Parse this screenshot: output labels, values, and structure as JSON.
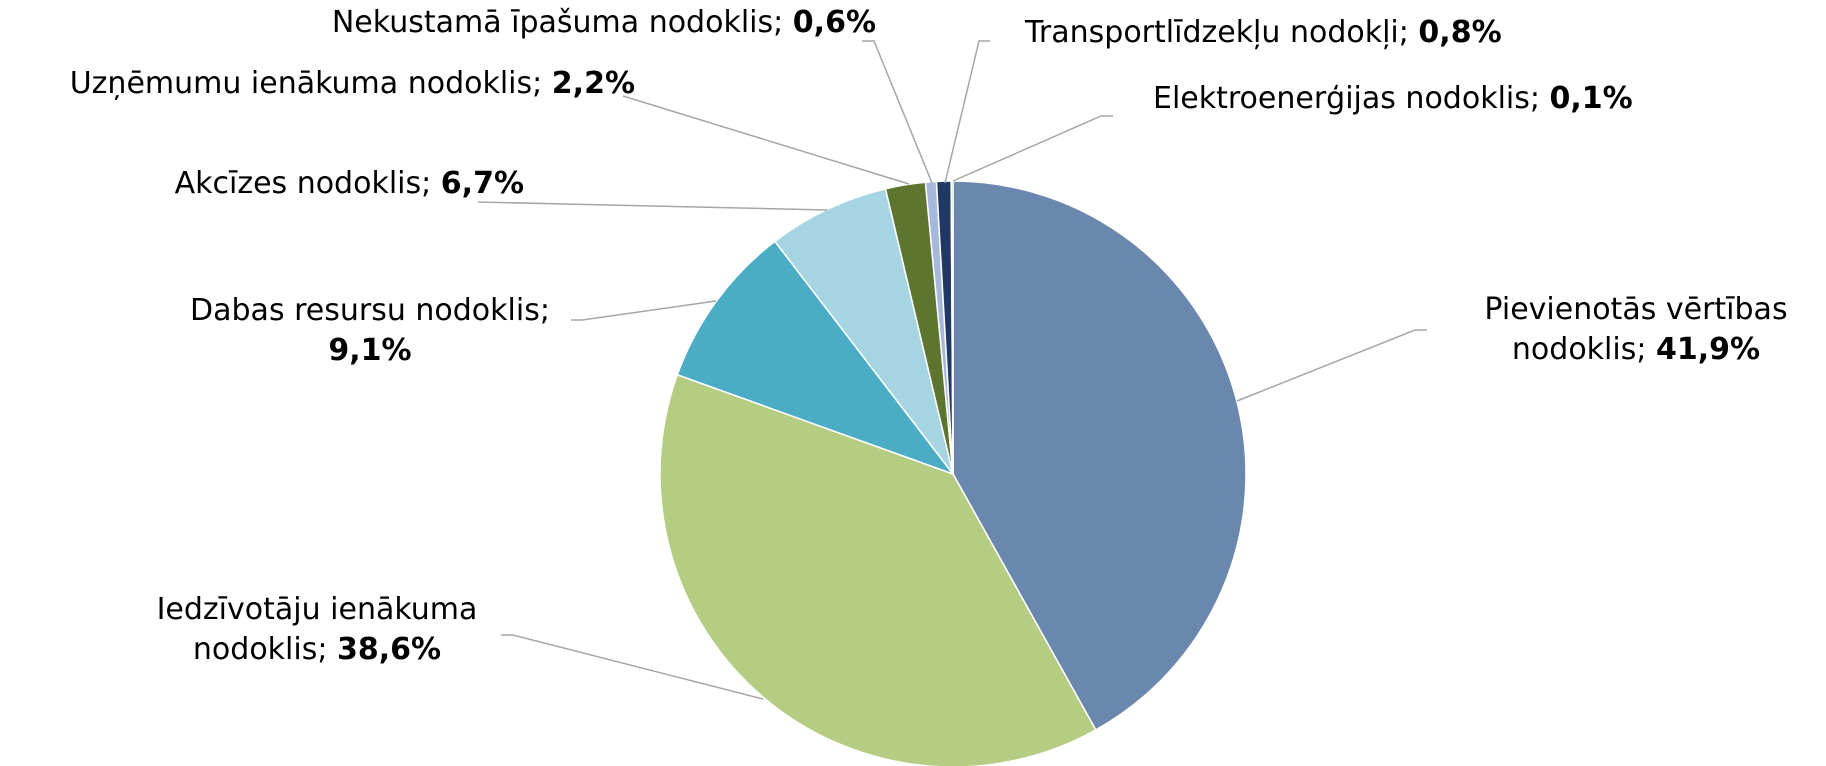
{
  "chart_data": {
    "type": "pie",
    "categories": [
      "Pievienotās vērtības nodoklis",
      "Iedzīvotāju ienākuma nodoklis",
      "Dabas resursu nodoklis",
      "Akcīzes nodoklis",
      "Uzņēmumu ienākuma nodoklis",
      "Nekustamā īpašuma nodoklis",
      "Transportlīdzekļu nodokļi",
      "Elektroenerģijas nodoklis"
    ],
    "values": [
      41.9,
      38.6,
      9.1,
      6.7,
      2.2,
      0.6,
      0.8,
      0.1
    ],
    "value_labels": [
      "41,9%",
      "38,6%",
      "9,1%",
      "6,7%",
      "2,2%",
      "0,6%",
      "0,8%",
      "0,1%"
    ],
    "label_separator": "; ",
    "colors": [
      "#6a88ad",
      "#b5cc83",
      "#4bacc6",
      "#a5d5e2",
      "#5e7530",
      "#a6b9dc",
      "#1f3864",
      "#92d050"
    ]
  }
}
